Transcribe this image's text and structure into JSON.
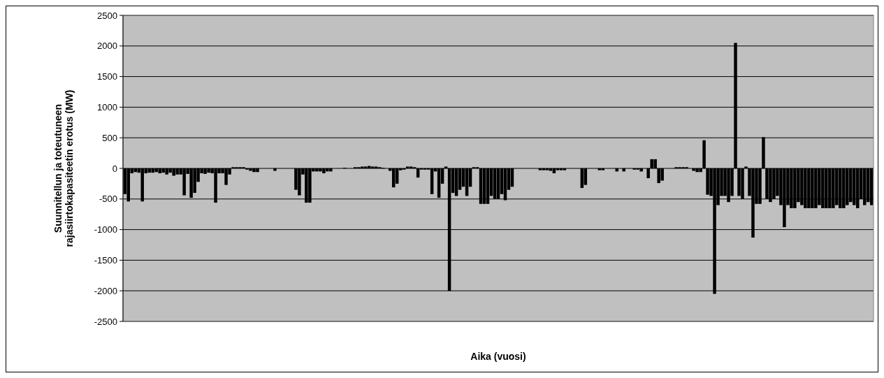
{
  "chart_data": {
    "type": "bar",
    "xlabel": "Aika (vuosi)",
    "ylabel": "Suunnitellun ja toteutuneen\nrajasiirtokapasiteetin erotus (MW)",
    "categories": [
      null,
      null,
      null,
      null,
      null,
      null,
      null,
      null,
      null,
      null,
      null,
      null,
      null,
      null,
      null,
      null,
      null,
      null,
      null,
      null,
      null,
      null,
      null,
      null,
      null,
      null,
      null,
      null,
      null,
      null,
      null,
      null,
      null,
      null,
      null,
      null,
      null,
      null,
      null,
      null,
      null,
      null,
      null,
      null,
      null,
      null,
      null,
      null,
      null,
      null,
      null,
      null,
      null,
      null,
      null,
      null,
      null,
      null,
      null,
      null,
      null,
      null,
      null,
      null,
      null,
      null,
      null,
      null,
      null,
      null,
      null,
      null,
      null,
      null,
      null,
      null,
      null,
      null,
      null,
      null,
      null,
      null,
      null,
      null,
      null,
      null,
      null,
      null,
      null,
      null,
      null,
      null,
      null,
      null,
      null,
      null,
      null,
      null,
      null,
      null,
      null,
      null,
      null,
      null,
      null,
      null,
      null,
      null,
      null,
      null,
      null,
      null,
      null,
      null,
      null,
      null,
      null,
      null,
      null,
      null,
      null,
      null,
      null,
      null,
      null,
      null,
      null,
      null,
      null,
      null,
      null,
      null,
      null,
      null,
      null,
      null,
      null,
      null,
      null,
      null,
      null,
      null,
      null,
      null,
      null,
      null,
      null,
      null,
      null,
      null,
      null,
      null,
      null,
      null,
      null,
      null,
      null,
      null,
      null,
      null,
      null,
      null,
      null,
      null,
      null,
      null,
      null,
      null,
      null,
      null,
      null,
      null,
      null,
      null,
      null,
      null,
      null,
      null,
      null,
      null,
      null,
      null,
      null,
      null,
      null,
      null,
      null,
      null,
      null,
      null,
      null,
      null,
      null,
      null,
      null,
      null,
      null,
      null,
      null,
      null,
      null,
      null,
      null,
      null,
      null,
      null,
      null,
      null,
      null,
      null,
      null,
      null,
      null,
      null,
      null
    ],
    "values": [
      -420,
      -540,
      -80,
      -60,
      -70,
      -540,
      -80,
      -70,
      -70,
      -60,
      -80,
      -70,
      -100,
      -70,
      -120,
      -100,
      -100,
      -440,
      -90,
      -480,
      -400,
      -220,
      -80,
      -90,
      -70,
      -80,
      -560,
      -80,
      -80,
      -270,
      -100,
      20,
      20,
      20,
      20,
      -20,
      -40,
      -60,
      -60,
      null,
      null,
      null,
      null,
      -40,
      null,
      null,
      null,
      null,
      null,
      -350,
      -440,
      -100,
      -560,
      -560,
      -50,
      -50,
      -50,
      -80,
      -50,
      -50,
      null,
      null,
      null,
      10,
      null,
      null,
      20,
      20,
      30,
      30,
      40,
      30,
      30,
      20,
      10,
      null,
      -40,
      -310,
      -250,
      -30,
      -20,
      30,
      30,
      20,
      -150,
      -20,
      -20,
      -20,
      -420,
      -50,
      -480,
      -250,
      30,
      -2000,
      -400,
      -450,
      -350,
      -300,
      -450,
      -300,
      20,
      20,
      -580,
      -580,
      -580,
      -450,
      -500,
      -500,
      -420,
      -520,
      -350,
      -300,
      null,
      null,
      null,
      null,
      null,
      null,
      null,
      -30,
      -30,
      -30,
      -40,
      -80,
      -30,
      -30,
      -30,
      null,
      null,
      null,
      null,
      -320,
      -270,
      null,
      null,
      null,
      -30,
      -30,
      null,
      null,
      null,
      -50,
      null,
      -50,
      null,
      null,
      -20,
      -20,
      -50,
      null,
      -160,
      150,
      150,
      -240,
      -200,
      null,
      null,
      null,
      20,
      20,
      20,
      20,
      null,
      -40,
      -60,
      -60,
      460,
      -430,
      -450,
      -2050,
      -600,
      -450,
      -450,
      -550,
      -450,
      2050,
      -450,
      -500,
      30,
      -450,
      -1130,
      -580,
      -580,
      510,
      -500,
      -550,
      -500,
      -450,
      -600,
      -960,
      -600,
      -650,
      -650,
      -550,
      -600,
      -650,
      -650,
      -650,
      -650,
      -600,
      -650,
      -650,
      -650,
      -650,
      -600,
      -650,
      -650,
      -600,
      -550,
      -600,
      -650,
      -500,
      -600,
      -550,
      -600
    ],
    "color": "#000000",
    "ylim": [
      -2500,
      2500
    ],
    "yticks": [
      -2500,
      -2000,
      -1500,
      -1000,
      -500,
      0,
      500,
      1000,
      1500,
      2000,
      2500
    ],
    "grid": "y",
    "tick_labels": "y"
  }
}
